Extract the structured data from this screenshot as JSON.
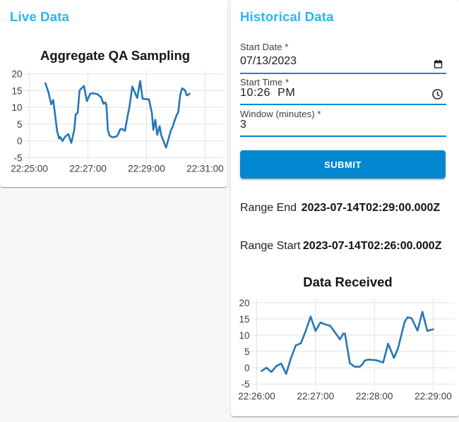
{
  "accent_color": "#29b6f6",
  "primary_color": "#0288d1",
  "live_panel": {
    "heading": "Live Data"
  },
  "historical_panel": {
    "heading": "Historical Data",
    "fields": {
      "start_date": {
        "label": "Start Date *",
        "value": "07/13/2023",
        "icon": "calendar"
      },
      "start_time": {
        "label": "Start Time *",
        "value": "10:26 PM",
        "icon": "clock"
      },
      "window": {
        "label": "Window (minutes) *",
        "value": "3"
      }
    },
    "submit_label": "SUBMIT",
    "range_end": {
      "label": "Range End",
      "value": "2023-07-14T02:29:00.000Z"
    },
    "range_start": {
      "label": "Range Start",
      "value": "2023-07-14T02:26:00.000Z"
    }
  },
  "chart_data": [
    {
      "id": "live",
      "type": "line",
      "title": "Aggregate QA Sampling",
      "xlabel": "",
      "ylabel": "",
      "line_color": "#2577b5",
      "grid": true,
      "legend": false,
      "x_ticks": [
        "22:25:00",
        "22:27:00",
        "22:29:00",
        "22:31:00"
      ],
      "x_min": "22:25:00",
      "x_max": "22:31:37",
      "y_ticks": [
        20,
        15,
        10,
        5,
        0,
        -5
      ],
      "ylim": [
        -5,
        21.2
      ],
      "x": [
        "22:25:33",
        "22:25:39",
        "22:25:45",
        "22:25:49",
        "22:25:57",
        "22:26:01",
        "22:26:03",
        "22:26:08",
        "22:26:13",
        "22:26:18",
        "22:26:20",
        "22:26:26",
        "22:26:32",
        "22:26:35",
        "22:26:39",
        "22:26:43",
        "22:26:52",
        "22:26:58",
        "22:27:05",
        "22:27:09",
        "22:27:19",
        "22:27:22",
        "22:27:27",
        "22:27:32",
        "22:27:36",
        "22:27:38",
        "22:27:41",
        "22:27:44",
        "22:27:48",
        "22:27:53",
        "22:27:58",
        "22:28:01",
        "22:28:06",
        "22:28:10",
        "22:28:16",
        "22:28:21",
        "22:28:25",
        "22:28:31",
        "22:28:41",
        "22:28:47",
        "22:28:52",
        "22:28:56",
        "22:29:05",
        "22:29:11",
        "22:29:14",
        "22:29:18",
        "22:29:22",
        "22:29:27",
        "22:29:30",
        "22:29:40",
        "22:29:45",
        "22:29:50",
        "22:29:54",
        "22:29:57",
        "22:30:02",
        "22:30:05",
        "22:30:09",
        "22:30:13",
        "22:30:19",
        "22:30:22",
        "22:30:24",
        "22:30:28"
      ],
      "values": [
        17.2,
        14.6,
        10.9,
        12.2,
        2.9,
        0.7,
        1.2,
        0.0,
        1.2,
        1.8,
        2.0,
        -0.6,
        3.2,
        7.9,
        8.4,
        15.1,
        16.4,
        11.9,
        14.1,
        14.2,
        14.0,
        13.6,
        13.1,
        11.1,
        11.5,
        10.6,
        3.2,
        1.7,
        1.2,
        1.1,
        1.3,
        1.7,
        3.4,
        3.6,
        3.0,
        7.2,
        10.0,
        16.2,
        12.8,
        17.9,
        12.6,
        12.5,
        12.4,
        8.3,
        3.3,
        6.3,
        1.8,
        4.4,
        1.8,
        -2.0,
        0.6,
        3.1,
        4.4,
        5.8,
        7.8,
        8.5,
        13.7,
        15.7,
        15.1,
        13.7,
        13.6,
        14.1
      ]
    },
    {
      "id": "received",
      "type": "line",
      "title": "Data Received",
      "xlabel": "",
      "ylabel": "",
      "line_color": "#2577b5",
      "grid": true,
      "legend": false,
      "x_ticks": [
        "22:26:00",
        "22:27:00",
        "22:28:00",
        "22:29:00"
      ],
      "x_min": "22:26:00",
      "x_max": "22:29:22",
      "y_ticks": [
        20,
        15,
        10,
        5,
        0,
        -5
      ],
      "ylim": [
        -5,
        21.2
      ],
      "x": [
        "22:26:05",
        "22:26:10",
        "22:26:15",
        "22:26:20",
        "22:26:25",
        "22:26:30",
        "22:26:35",
        "22:26:40",
        "22:26:45",
        "22:26:50",
        "22:26:55",
        "22:27:00",
        "22:27:05",
        "22:27:10",
        "22:27:15",
        "22:27:20",
        "22:27:25",
        "22:27:28",
        "22:27:30",
        "22:27:35",
        "22:27:40",
        "22:27:45",
        "22:27:48",
        "22:27:50",
        "22:27:54",
        "22:27:58",
        "22:28:02",
        "22:28:09",
        "22:28:14",
        "22:28:20",
        "22:28:24",
        "22:28:31",
        "22:28:34",
        "22:28:38",
        "22:28:44",
        "22:28:49",
        "22:28:54",
        "22:28:57",
        "22:29:00"
      ],
      "values": [
        -1.0,
        0.0,
        -1.3,
        0.5,
        1.3,
        -1.9,
        3.0,
        6.9,
        7.5,
        11.3,
        15.7,
        11.3,
        13.9,
        13.3,
        12.9,
        10.8,
        8.7,
        10.4,
        10.5,
        1.4,
        0.3,
        0.3,
        1.1,
        2.2,
        2.5,
        2.4,
        2.3,
        1.6,
        7.4,
        3.0,
        5.9,
        14.2,
        15.5,
        15.2,
        11.4,
        17.2,
        11.3,
        11.6,
        11.8
      ]
    }
  ]
}
